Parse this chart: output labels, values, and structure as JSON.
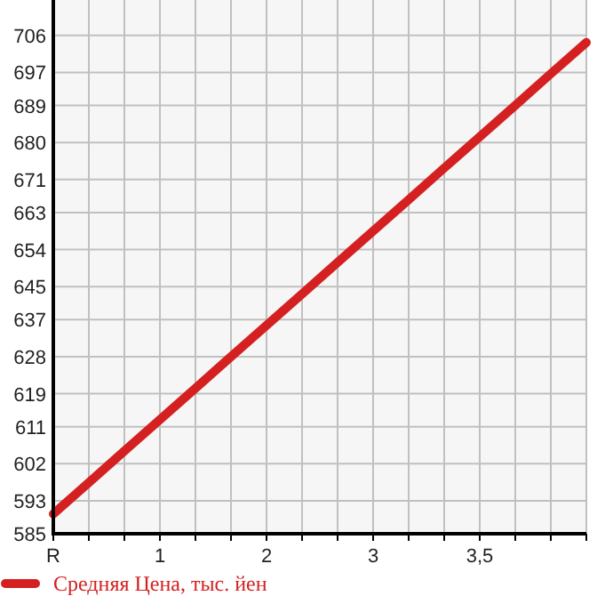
{
  "chart_data": {
    "type": "line",
    "categories": [
      "R",
      null,
      null,
      "1",
      null,
      null,
      "2",
      null,
      null,
      "3",
      null,
      null,
      "3,5",
      null,
      null,
      null
    ],
    "series": [
      {
        "name": "Средняя Цена, тыс. йен",
        "color": "#d42020",
        "values": [
          589.8,
          597.4,
          605.1,
          612.7,
          620.3,
          628.0,
          635.6,
          643.2,
          650.9,
          658.5,
          666.1,
          673.8,
          681.4,
          689.0,
          696.7,
          704.3
        ]
      }
    ],
    "ylim": [
      585,
      714.6
    ],
    "yticks": [
      585,
      593,
      602,
      611,
      619,
      628,
      637,
      645,
      654,
      663,
      671,
      680,
      689,
      697,
      706
    ],
    "grid": true,
    "legend": "bottom",
    "marker": "none",
    "line_style": "solid"
  }
}
